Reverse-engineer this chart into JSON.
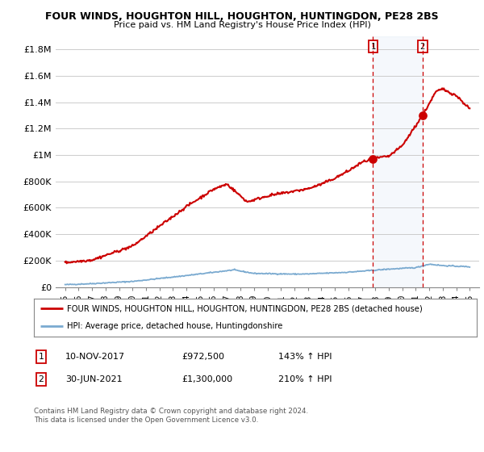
{
  "title": "FOUR WINDS, HOUGHTON HILL, HOUGHTON, HUNTINGDON, PE28 2BS",
  "subtitle": "Price paid vs. HM Land Registry's House Price Index (HPI)",
  "ylim": [
    0,
    1900000
  ],
  "yticks": [
    0,
    200000,
    400000,
    600000,
    800000,
    1000000,
    1200000,
    1400000,
    1600000,
    1800000
  ],
  "ytick_labels": [
    "£0",
    "£200K",
    "£400K",
    "£600K",
    "£800K",
    "£1M",
    "£1.2M",
    "£1.4M",
    "£1.6M",
    "£1.8M"
  ],
  "background_color": "#ffffff",
  "plot_bg_color": "#ffffff",
  "grid_color": "#cccccc",
  "hpi_color": "#7aaad0",
  "price_color": "#cc0000",
  "marker1_value": 972500,
  "marker2_value": 1300000,
  "year1": 2017.833,
  "year2": 2021.5,
  "legend_line1": "FOUR WINDS, HOUGHTON HILL, HOUGHTON, HUNTINGDON, PE28 2BS (detached house)",
  "legend_line2": "HPI: Average price, detached house, Huntingdonshire",
  "table_row1_num": "1",
  "table_row1_date": "10-NOV-2017",
  "table_row1_price": "£972,500",
  "table_row1_hpi": "143% ↑ HPI",
  "table_row2_num": "2",
  "table_row2_date": "30-JUN-2021",
  "table_row2_price": "£1,300,000",
  "table_row2_hpi": "210% ↑ HPI",
  "footer": "Contains HM Land Registry data © Crown copyright and database right 2024.\nThis data is licensed under the Open Government Licence v3.0.",
  "highlight_color": "#ddeeff",
  "dashed_line_color": "#cc0000"
}
